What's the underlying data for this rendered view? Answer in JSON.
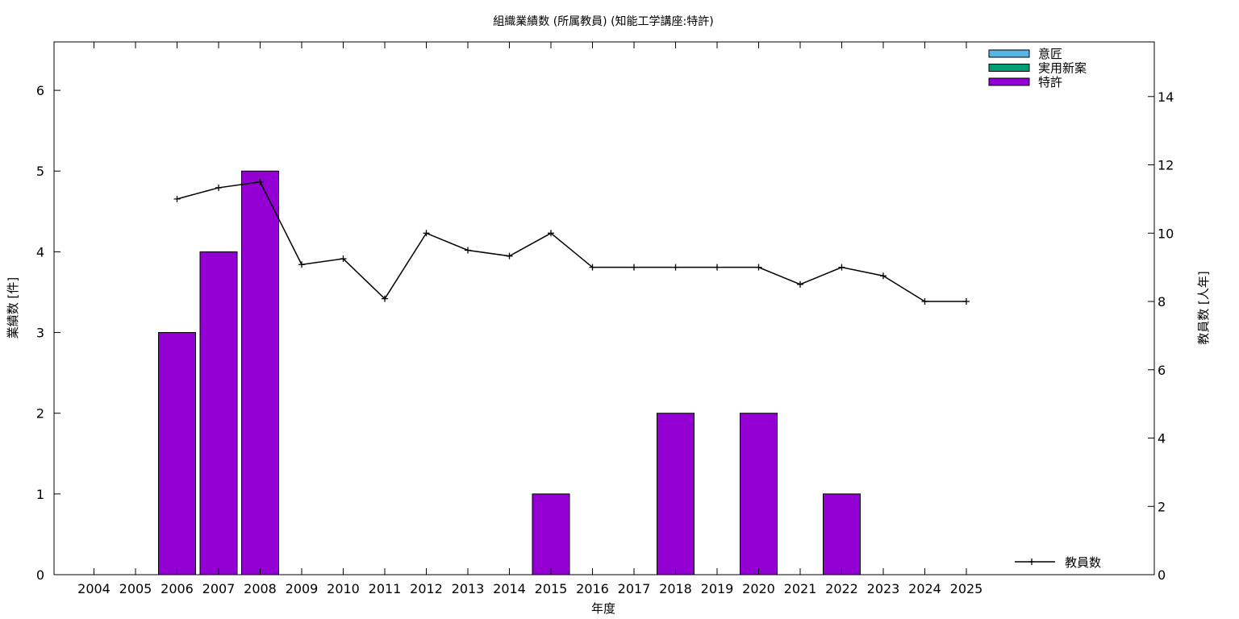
{
  "chart_data": {
    "type": "bar",
    "title": "組織業績数 (所属教員) (知能工学講座:特許)",
    "xlabel": "年度",
    "ylabel": "業績数 [件]",
    "y2label": "教員数 [人年]",
    "categories": [
      "2004",
      "2005",
      "2006",
      "2007",
      "2008",
      "2009",
      "2010",
      "2011",
      "2012",
      "2013",
      "2014",
      "2015",
      "2016",
      "2017",
      "2018",
      "2019",
      "2020",
      "2021",
      "2022",
      "2023",
      "2024",
      "2025"
    ],
    "ylim": [
      0,
      6.6
    ],
    "y2lim": [
      0,
      15.6
    ],
    "yticks": [
      "0",
      "1",
      "2",
      "3",
      "4",
      "5",
      "6"
    ],
    "y2ticks": [
      "0",
      "2",
      "4",
      "6",
      "8",
      "10",
      "12",
      "14"
    ],
    "series": [
      {
        "name": "意匠",
        "kind": "bar",
        "color": "#56b4e9",
        "values": [
          0,
          0,
          0,
          0,
          0,
          0,
          0,
          0,
          0,
          0,
          0,
          0,
          0,
          0,
          0,
          0,
          0,
          0,
          0,
          0,
          0,
          0
        ]
      },
      {
        "name": "実用新案",
        "kind": "bar",
        "color": "#009e73",
        "values": [
          0,
          0,
          0,
          0,
          0,
          0,
          0,
          0,
          0,
          0,
          0,
          0,
          0,
          0,
          0,
          0,
          0,
          0,
          0,
          0,
          0,
          0
        ]
      },
      {
        "name": "特許",
        "kind": "bar",
        "color": "#9400d3",
        "values": [
          0,
          0,
          3,
          4,
          5,
          0,
          0,
          0,
          0,
          0,
          0,
          1,
          0,
          0,
          2,
          0,
          2,
          0,
          1,
          0,
          0,
          0
        ]
      },
      {
        "name": "教員数",
        "kind": "line",
        "axis": "right",
        "color": "#000000",
        "values": [
          null,
          null,
          11.0,
          11.33,
          11.5,
          9.08,
          9.25,
          8.08,
          10.0,
          9.5,
          9.33,
          10.0,
          9.0,
          9.0,
          9.0,
          9.0,
          9.0,
          8.5,
          9.0,
          8.75,
          8.0,
          8.0
        ]
      }
    ],
    "grid": false,
    "legend": {
      "bars_position": "top-right",
      "line_position": "bottom-right"
    }
  }
}
